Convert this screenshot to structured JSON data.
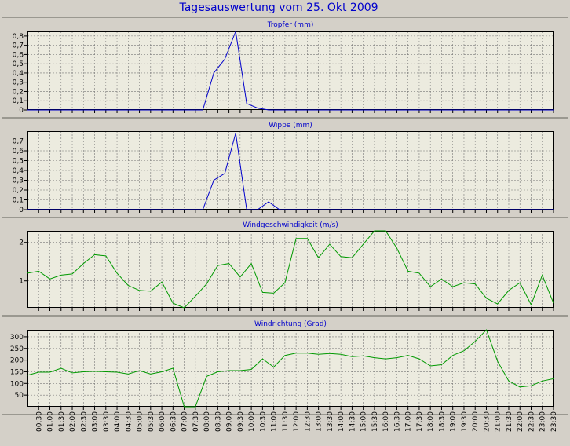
{
  "title": "Tagesauswertung vom 25. Okt 2009",
  "colors": {
    "background": "#d4d0c8",
    "plot_background": "#ecebdf",
    "title": "#0000cc",
    "rain_line": "#0000cc",
    "wind_line": "#009900",
    "grid": "#777777"
  },
  "time_labels": [
    "00:30",
    "01:00",
    "01:30",
    "02:00",
    "02:30",
    "03:00",
    "03:30",
    "04:00",
    "04:30",
    "05:00",
    "05:30",
    "06:00",
    "06:30",
    "07:00",
    "07:30",
    "08:00",
    "08:30",
    "09:00",
    "09:30",
    "10:00",
    "10:30",
    "11:00",
    "11:30",
    "12:00",
    "12:30",
    "13:00",
    "13:30",
    "14:00",
    "14:30",
    "15:00",
    "15:30",
    "16:00",
    "16:30",
    "17:00",
    "17:30",
    "18:00",
    "18:30",
    "19:00",
    "19:30",
    "20:00",
    "20:30",
    "21:00",
    "21:30",
    "22:00",
    "22:30",
    "23:00",
    "23:30"
  ],
  "chart_data": [
    {
      "type": "line",
      "title": "Tropfer (mm)",
      "ylim": [
        0,
        0.85
      ],
      "yticks": [
        0,
        0.1,
        0.2,
        0.3,
        0.4,
        0.5,
        0.6,
        0.7,
        0.8
      ],
      "ytick_labels": [
        "0",
        "0,1",
        "0,2",
        "0,3",
        "0,4",
        "0,5",
        "0,6",
        "0,7",
        "0,8"
      ],
      "color": "#0000cc",
      "values": [
        0,
        0,
        0,
        0,
        0,
        0,
        0,
        0,
        0,
        0,
        0,
        0,
        0,
        0,
        0,
        0,
        0,
        0.4,
        0.55,
        0.85,
        0.07,
        0.02,
        0,
        0,
        0,
        0,
        0,
        0,
        0,
        0,
        0,
        0,
        0,
        0,
        0,
        0,
        0,
        0,
        0,
        0,
        0,
        0,
        0,
        0,
        0,
        0,
        0,
        0,
        0
      ]
    },
    {
      "type": "line",
      "title": "Wippe (mm)",
      "ylim": [
        0,
        0.8
      ],
      "yticks": [
        0,
        0.1,
        0.2,
        0.3,
        0.4,
        0.5,
        0.6,
        0.7
      ],
      "ytick_labels": [
        "0",
        "0,1",
        "0,2",
        "0,3",
        "0,4",
        "0,5",
        "0,6",
        "0,7"
      ],
      "color": "#0000cc",
      "values": [
        0,
        0,
        0,
        0,
        0,
        0,
        0,
        0,
        0,
        0,
        0,
        0,
        0,
        0,
        0,
        0,
        0,
        0.3,
        0.37,
        0.78,
        0,
        0,
        0.08,
        0,
        0,
        0,
        0,
        0,
        0,
        0,
        0,
        0,
        0,
        0,
        0,
        0,
        0,
        0,
        0,
        0,
        0,
        0,
        0,
        0,
        0,
        0,
        0,
        0,
        0
      ]
    },
    {
      "type": "line",
      "title": "Windgeschwindigkeit (m/s)",
      "ylim": [
        0.3,
        2.3
      ],
      "yticks": [
        1,
        2
      ],
      "ytick_labels": [
        "1",
        "2"
      ],
      "color": "#009900",
      "values": [
        1.2,
        1.25,
        1.05,
        1.15,
        1.18,
        1.45,
        1.68,
        1.65,
        1.2,
        0.88,
        0.75,
        0.73,
        0.97,
        0.42,
        0.3,
        0.6,
        0.92,
        1.4,
        1.45,
        1.1,
        1.45,
        0.7,
        0.68,
        0.95,
        2.1,
        2.1,
        1.6,
        1.95,
        1.63,
        1.6,
        1.95,
        2.3,
        2.3,
        1.85,
        1.25,
        1.2,
        0.85,
        1.05,
        0.85,
        0.95,
        0.92,
        0.55,
        0.4,
        0.75,
        0.95,
        0.38,
        1.15,
        0.42
      ]
    },
    {
      "type": "line",
      "title": "Windrichtung (Grad)",
      "ylim": [
        0,
        330
      ],
      "yticks": [
        50,
        100,
        150,
        200,
        250,
        300
      ],
      "ytick_labels": [
        "50",
        "100",
        "150",
        "200",
        "250",
        "300"
      ],
      "color": "#009900",
      "values": [
        135,
        148,
        148,
        165,
        145,
        150,
        152,
        150,
        148,
        140,
        155,
        140,
        150,
        165,
        0,
        0,
        130,
        150,
        155,
        155,
        160,
        205,
        170,
        220,
        230,
        230,
        225,
        228,
        225,
        215,
        218,
        210,
        205,
        210,
        220,
        205,
        175,
        180,
        220,
        240,
        280,
        330,
        195,
        110,
        85,
        90,
        110,
        120
      ]
    }
  ]
}
